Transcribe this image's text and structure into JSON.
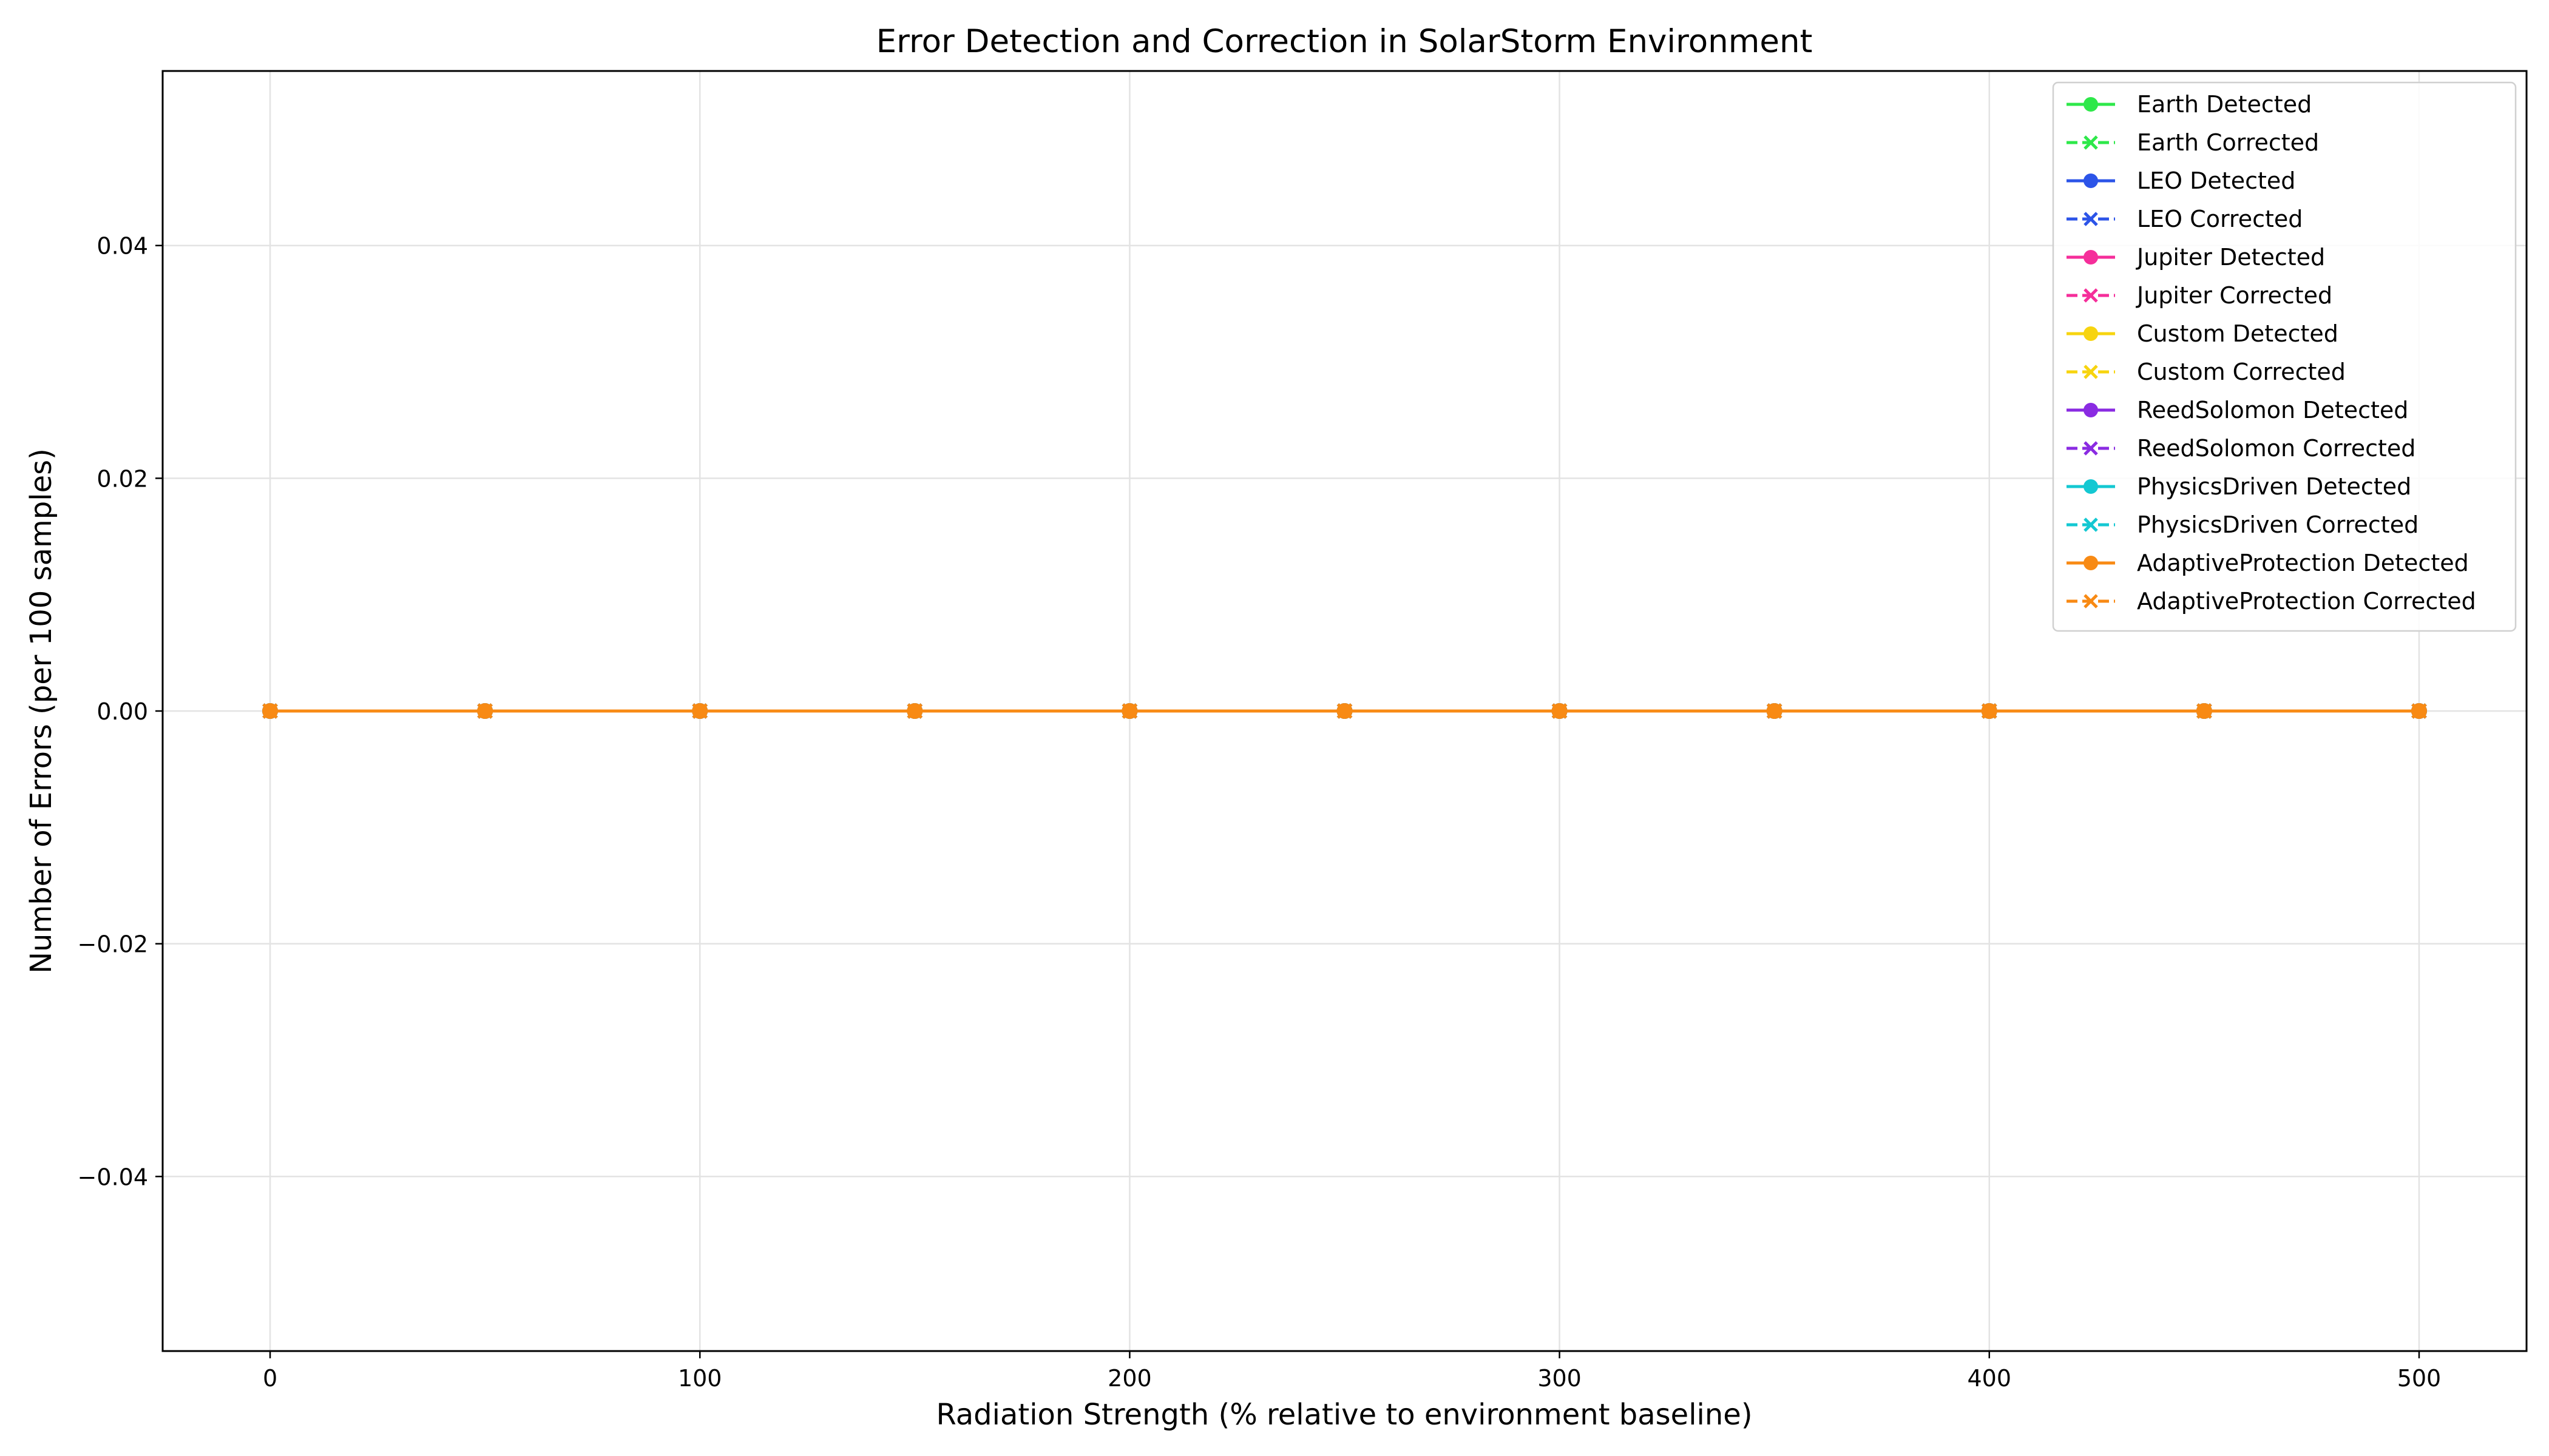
{
  "chart_data": {
    "type": "line",
    "title": "Error Detection and Correction in SolarStorm Environment",
    "xlabel": "Radiation Strength (% relative to environment baseline)",
    "ylabel": "Number of Errors (per 100 samples)",
    "xlim": [
      -25,
      525
    ],
    "ylim": [
      -0.055,
      0.055
    ],
    "xticks": [
      0,
      100,
      200,
      300,
      400,
      500
    ],
    "xtick_labels": [
      "0",
      "100",
      "200",
      "300",
      "400",
      "500"
    ],
    "yticks": [
      0.04,
      0.02,
      0.0,
      -0.02,
      -0.04
    ],
    "ytick_labels": [
      "0.04",
      "0.02",
      "0.00",
      "−0.02",
      "−0.04"
    ],
    "grid": true,
    "legend_position": "top-right",
    "x": [
      0,
      50,
      100,
      150,
      200,
      250,
      300,
      350,
      400,
      450,
      500
    ],
    "series": [
      {
        "name": "Earth Detected",
        "color": "#2ee84a",
        "style": "solid",
        "marker": "circle",
        "values": [
          0,
          0,
          0,
          0,
          0,
          0,
          0,
          0,
          0,
          0,
          0
        ]
      },
      {
        "name": "Earth Corrected",
        "color": "#2ee84a",
        "style": "dashed",
        "marker": "x",
        "values": [
          0,
          0,
          0,
          0,
          0,
          0,
          0,
          0,
          0,
          0,
          0
        ]
      },
      {
        "name": "LEO Detected",
        "color": "#2c54e8",
        "style": "solid",
        "marker": "circle",
        "values": [
          0,
          0,
          0,
          0,
          0,
          0,
          0,
          0,
          0,
          0,
          0
        ]
      },
      {
        "name": "LEO Corrected",
        "color": "#2c54e8",
        "style": "dashed",
        "marker": "x",
        "values": [
          0,
          0,
          0,
          0,
          0,
          0,
          0,
          0,
          0,
          0,
          0
        ]
      },
      {
        "name": "Jupiter Detected",
        "color": "#f52e9a",
        "style": "solid",
        "marker": "circle",
        "values": [
          0,
          0,
          0,
          0,
          0,
          0,
          0,
          0,
          0,
          0,
          0
        ]
      },
      {
        "name": "Jupiter Corrected",
        "color": "#f52e9a",
        "style": "dashed",
        "marker": "x",
        "values": [
          0,
          0,
          0,
          0,
          0,
          0,
          0,
          0,
          0,
          0,
          0
        ]
      },
      {
        "name": "Custom Detected",
        "color": "#f7d40f",
        "style": "solid",
        "marker": "circle",
        "values": [
          0,
          0,
          0,
          0,
          0,
          0,
          0,
          0,
          0,
          0,
          0
        ]
      },
      {
        "name": "Custom Corrected",
        "color": "#f7d40f",
        "style": "dashed",
        "marker": "x",
        "values": [
          0,
          0,
          0,
          0,
          0,
          0,
          0,
          0,
          0,
          0,
          0
        ]
      },
      {
        "name": "ReedSolomon Detected",
        "color": "#8a2be2",
        "style": "solid",
        "marker": "circle",
        "values": [
          0,
          0,
          0,
          0,
          0,
          0,
          0,
          0,
          0,
          0,
          0
        ]
      },
      {
        "name": "ReedSolomon Corrected",
        "color": "#8a2be2",
        "style": "dashed",
        "marker": "x",
        "values": [
          0,
          0,
          0,
          0,
          0,
          0,
          0,
          0,
          0,
          0,
          0
        ]
      },
      {
        "name": "PhysicsDriven Detected",
        "color": "#14c8d2",
        "style": "solid",
        "marker": "circle",
        "values": [
          0,
          0,
          0,
          0,
          0,
          0,
          0,
          0,
          0,
          0,
          0
        ]
      },
      {
        "name": "PhysicsDriven Corrected",
        "color": "#14c8d2",
        "style": "dashed",
        "marker": "x",
        "values": [
          0,
          0,
          0,
          0,
          0,
          0,
          0,
          0,
          0,
          0,
          0
        ]
      },
      {
        "name": "AdaptiveProtection Detected",
        "color": "#f88a14",
        "style": "solid",
        "marker": "circle",
        "values": [
          0,
          0,
          0,
          0,
          0,
          0,
          0,
          0,
          0,
          0,
          0
        ]
      },
      {
        "name": "AdaptiveProtection Corrected",
        "color": "#f88a14",
        "style": "dashed",
        "marker": "x",
        "values": [
          0,
          0,
          0,
          0,
          0,
          0,
          0,
          0,
          0,
          0,
          0
        ]
      }
    ]
  }
}
